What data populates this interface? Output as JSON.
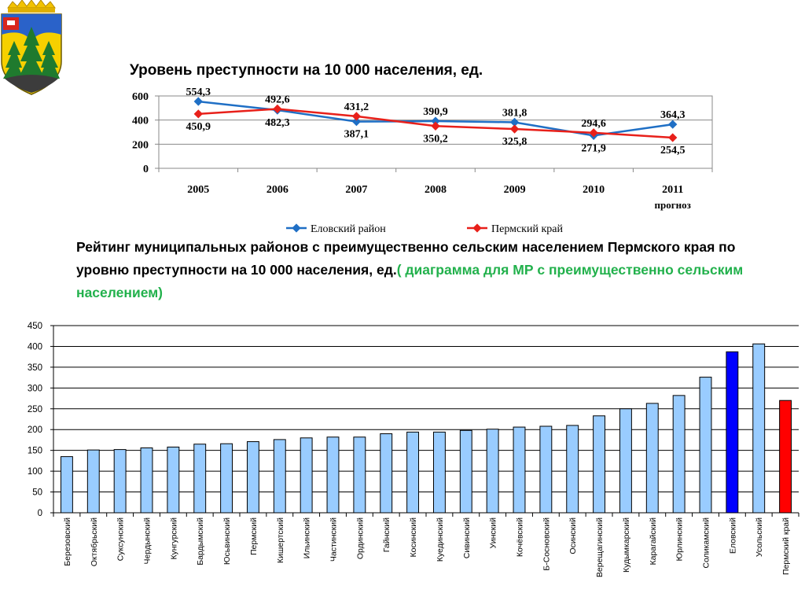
{
  "title1": "Уровень преступности на 10 000 населения, ед.",
  "title2": {
    "main": "Рейтинг муниципальных районов с преимущественно сельским населением Пермского края по уровню преступности на 10 000 населения, ед.",
    "accent": "( диаграмма для МР с преимущественно сельским населением)"
  },
  "colors": {
    "elovsky_line": "#1f6fc5",
    "perm_line": "#e8201a",
    "bar_default": "#99ccff",
    "bar_elovsky": "#0000ff",
    "bar_perm": "#ff0000"
  },
  "chart_data": [
    {
      "type": "line",
      "categories": [
        "2005",
        "2006",
        "2007",
        "2008",
        "2009",
        "2010",
        "2011"
      ],
      "category_sublabels": [
        "",
        "",
        "",
        "",
        "",
        "",
        "прогноз"
      ],
      "series": [
        {
          "name": "Еловский район",
          "values": [
            554.3,
            482.3,
            387.1,
            390.9,
            381.8,
            271.9,
            364.3
          ],
          "labels": [
            "554,3",
            "482,3",
            "387,1",
            "390,9",
            "381,8",
            "271,9",
            "364,3"
          ]
        },
        {
          "name": "Пермский край",
          "values": [
            450.9,
            492.6,
            431.2,
            350.2,
            325.8,
            294.6,
            254.5
          ],
          "labels": [
            "450,9",
            "492,6",
            "431,2",
            "350,2",
            "325,8",
            "294,6",
            "254,5"
          ]
        }
      ],
      "yticks": [
        "0",
        "200",
        "400",
        "600"
      ],
      "ylim": [
        0,
        600
      ],
      "grid": true,
      "legend": "bottom"
    },
    {
      "type": "bar",
      "categories": [
        "Березовский",
        "Октябрьский",
        "Суксунский",
        "Чердынский",
        "Кунгурский",
        "Бардымский",
        "Юсьвинский",
        "Пермский",
        "Кишертский",
        "Ильинский",
        "Частинский",
        "Ординский",
        "Гайнский",
        "Косинский",
        "Куединский",
        "Сивинский",
        "Уинский",
        "Кочёвский",
        "Б-Сосновский",
        "Осинский",
        "Верещагинский",
        "Кудымкарский",
        "Карагайский",
        "Юрлинский",
        "Соликамский",
        "Еловский",
        "Усольский",
        "Пермский край"
      ],
      "values": [
        135,
        151,
        152,
        156,
        158,
        165,
        166,
        171,
        176,
        180,
        182,
        182,
        190,
        194,
        194,
        198,
        201,
        206,
        208,
        210,
        233,
        250,
        263,
        282,
        326,
        387,
        406,
        270
      ],
      "highlight": {
        "Еловский": "bar_elovsky",
        "Пермский край": "bar_perm"
      },
      "yticks": [
        "0",
        "50",
        "100",
        "150",
        "200",
        "250",
        "300",
        "350",
        "400",
        "450"
      ],
      "ylim": [
        0,
        450
      ],
      "grid": true
    }
  ]
}
